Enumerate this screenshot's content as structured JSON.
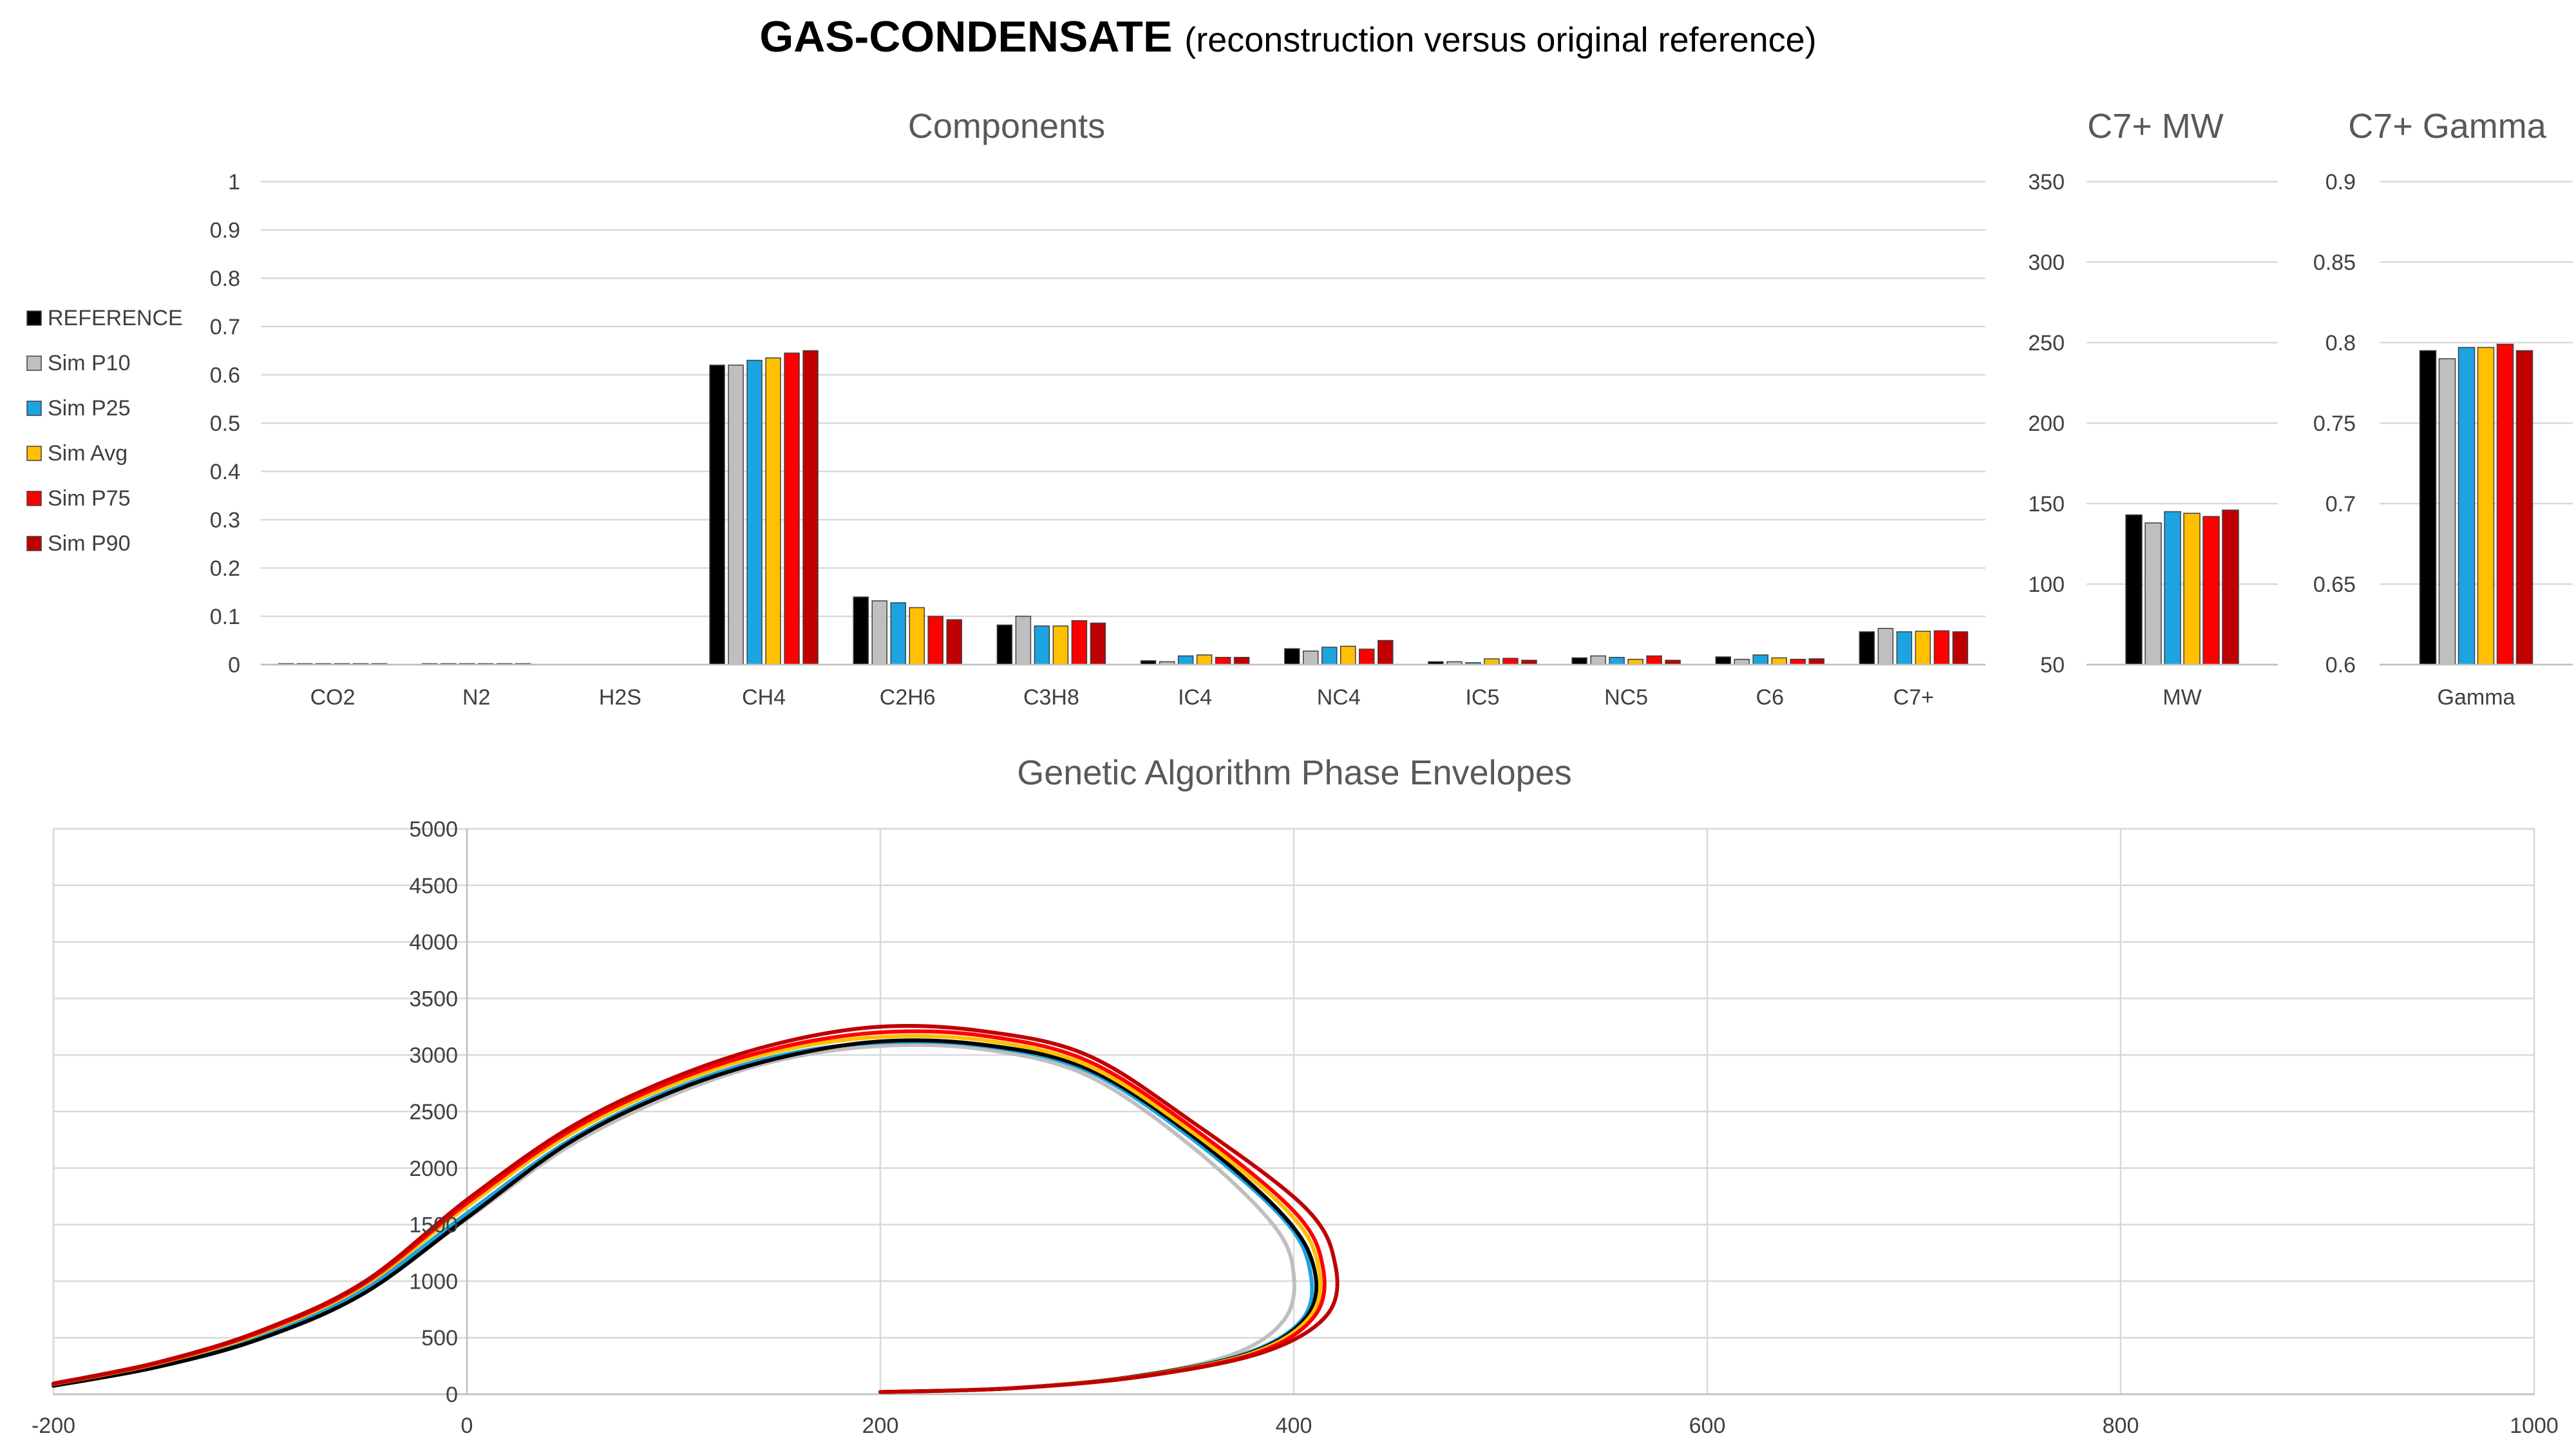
{
  "title": {
    "main": "GAS-CONDENSATE",
    "sub": "(reconstruction versus original reference)"
  },
  "colors": {
    "REFERENCE": "#000000",
    "Sim P10": "#bfbfbf",
    "Sim P25": "#1ba4e0",
    "Sim Avg": "#ffc000",
    "Sim P75": "#ff0000",
    "Sim P90": "#c00000"
  },
  "chart_data": [
    {
      "type": "bar",
      "title": "Components",
      "categories": [
        "CO2",
        "N2",
        "H2S",
        "CH4",
        "C2H6",
        "C3H8",
        "IC4",
        "NC4",
        "IC5",
        "NC5",
        "C6",
        "C7+"
      ],
      "ylim": [
        0,
        1
      ],
      "yticks": [
        0,
        0.1,
        0.2,
        0.3,
        0.4,
        0.5,
        0.6,
        0.7,
        0.8,
        0.9,
        1
      ],
      "legend": "left",
      "grid": true,
      "series": [
        {
          "name": "REFERENCE",
          "values": [
            0.002,
            0.002,
            0,
            0.62,
            0.14,
            0.082,
            0.008,
            0.033,
            0.006,
            0.014,
            0.016,
            0.068
          ]
        },
        {
          "name": "Sim P10",
          "values": [
            0.002,
            0.002,
            0,
            0.62,
            0.132,
            0.1,
            0.006,
            0.028,
            0.006,
            0.018,
            0.011,
            0.075
          ]
        },
        {
          "name": "Sim P25",
          "values": [
            0.002,
            0.002,
            0,
            0.63,
            0.128,
            0.08,
            0.018,
            0.036,
            0.004,
            0.015,
            0.02,
            0.068
          ]
        },
        {
          "name": "Sim Avg",
          "values": [
            0.002,
            0.002,
            0,
            0.635,
            0.118,
            0.08,
            0.02,
            0.038,
            0.012,
            0.011,
            0.014,
            0.069
          ]
        },
        {
          "name": "Sim P75",
          "values": [
            0.002,
            0.002,
            0,
            0.645,
            0.1,
            0.091,
            0.015,
            0.032,
            0.013,
            0.018,
            0.011,
            0.07
          ]
        },
        {
          "name": "Sim P90",
          "values": [
            0.002,
            0.002,
            0,
            0.65,
            0.093,
            0.086,
            0.015,
            0.05,
            0.009,
            0.009,
            0.012,
            0.068
          ]
        }
      ]
    },
    {
      "type": "bar",
      "title": "C7+ MW",
      "categories": [
        "MW"
      ],
      "ylim": [
        50,
        350
      ],
      "yticks": [
        50,
        100,
        150,
        200,
        250,
        300,
        350
      ],
      "grid": true,
      "series": [
        {
          "name": "REFERENCE",
          "values": [
            143
          ]
        },
        {
          "name": "Sim P10",
          "values": [
            138
          ]
        },
        {
          "name": "Sim P25",
          "values": [
            145
          ]
        },
        {
          "name": "Sim Avg",
          "values": [
            144
          ]
        },
        {
          "name": "Sim P75",
          "values": [
            142
          ]
        },
        {
          "name": "Sim P90",
          "values": [
            146
          ]
        }
      ]
    },
    {
      "type": "bar",
      "title": "C7+ Gamma",
      "categories": [
        "Gamma"
      ],
      "ylim": [
        0.6,
        0.9
      ],
      "yticks": [
        0.6,
        0.65,
        0.7,
        0.75,
        0.8,
        0.85,
        0.9
      ],
      "grid": true,
      "series": [
        {
          "name": "REFERENCE",
          "values": [
            0.795
          ]
        },
        {
          "name": "Sim P10",
          "values": [
            0.79
          ]
        },
        {
          "name": "Sim P25",
          "values": [
            0.797
          ]
        },
        {
          "name": "Sim Avg",
          "values": [
            0.797
          ]
        },
        {
          "name": "Sim P75",
          "values": [
            0.799
          ]
        },
        {
          "name": "Sim P90",
          "values": [
            0.795
          ]
        }
      ]
    },
    {
      "type": "line",
      "title": "Genetic Algorithm Phase Envelopes",
      "xlim": [
        -200,
        1000
      ],
      "ylim": [
        0,
        5000
      ],
      "xticks": [
        -200,
        0,
        200,
        400,
        600,
        800,
        1000
      ],
      "yticks": [
        0,
        500,
        1000,
        1500,
        2000,
        2500,
        3000,
        3500,
        4000,
        4500,
        5000
      ],
      "grid": true,
      "series": [
        {
          "name": "Sim P10",
          "x": [
            -200,
            -150,
            -100,
            -50,
            0,
            50,
            100,
            150,
            200,
            250,
            300,
            350,
            390,
            400,
            395,
            370,
            320,
            260,
            200
          ],
          "y": [
            80,
            250,
            500,
            900,
            1550,
            2200,
            2650,
            2950,
            3080,
            3050,
            2820,
            2200,
            1500,
            1050,
            650,
            350,
            150,
            50,
            20
          ]
        },
        {
          "name": "Sim P25",
          "x": [
            -200,
            -150,
            -100,
            -50,
            0,
            50,
            100,
            150,
            200,
            250,
            300,
            350,
            395,
            408,
            404,
            375,
            320,
            260,
            200
          ],
          "y": [
            85,
            260,
            520,
            930,
            1600,
            2250,
            2700,
            2990,
            3110,
            3080,
            2860,
            2270,
            1550,
            1080,
            660,
            350,
            150,
            50,
            20
          ]
        },
        {
          "name": "REFERENCE",
          "x": [
            -200,
            -150,
            -100,
            -50,
            0,
            50,
            100,
            150,
            200,
            250,
            300,
            350,
            395,
            410,
            406,
            378,
            322,
            262,
            200
          ],
          "y": [
            75,
            240,
            490,
            890,
            1560,
            2230,
            2680,
            2970,
            3120,
            3090,
            2880,
            2300,
            1580,
            1100,
            680,
            360,
            155,
            52,
            20
          ]
        },
        {
          "name": "Sim Avg",
          "x": [
            -200,
            -150,
            -100,
            -50,
            0,
            50,
            100,
            150,
            200,
            250,
            300,
            350,
            398,
            412,
            408,
            380,
            325,
            263,
            200
          ],
          "y": [
            90,
            270,
            540,
            960,
            1660,
            2300,
            2740,
            3030,
            3160,
            3130,
            2910,
            2330,
            1600,
            1120,
            690,
            365,
            158,
            53,
            20
          ]
        },
        {
          "name": "Sim P75",
          "x": [
            -200,
            -150,
            -100,
            -50,
            0,
            50,
            100,
            150,
            200,
            250,
            300,
            350,
            400,
            414,
            410,
            382,
            326,
            264,
            200
          ],
          "y": [
            92,
            275,
            550,
            975,
            1690,
            2330,
            2770,
            3060,
            3200,
            3170,
            2950,
            2370,
            1620,
            1130,
            690,
            365,
            158,
            53,
            20
          ]
        },
        {
          "name": "Sim P90",
          "x": [
            -200,
            -150,
            -100,
            -50,
            0,
            50,
            100,
            150,
            200,
            250,
            300,
            350,
            405,
            420,
            416,
            385,
            328,
            265,
            200
          ],
          "y": [
            95,
            280,
            560,
            990,
            1720,
            2360,
            2800,
            3100,
            3250,
            3210,
            3000,
            2420,
            1660,
            1150,
            700,
            370,
            160,
            54,
            20
          ]
        }
      ]
    }
  ]
}
